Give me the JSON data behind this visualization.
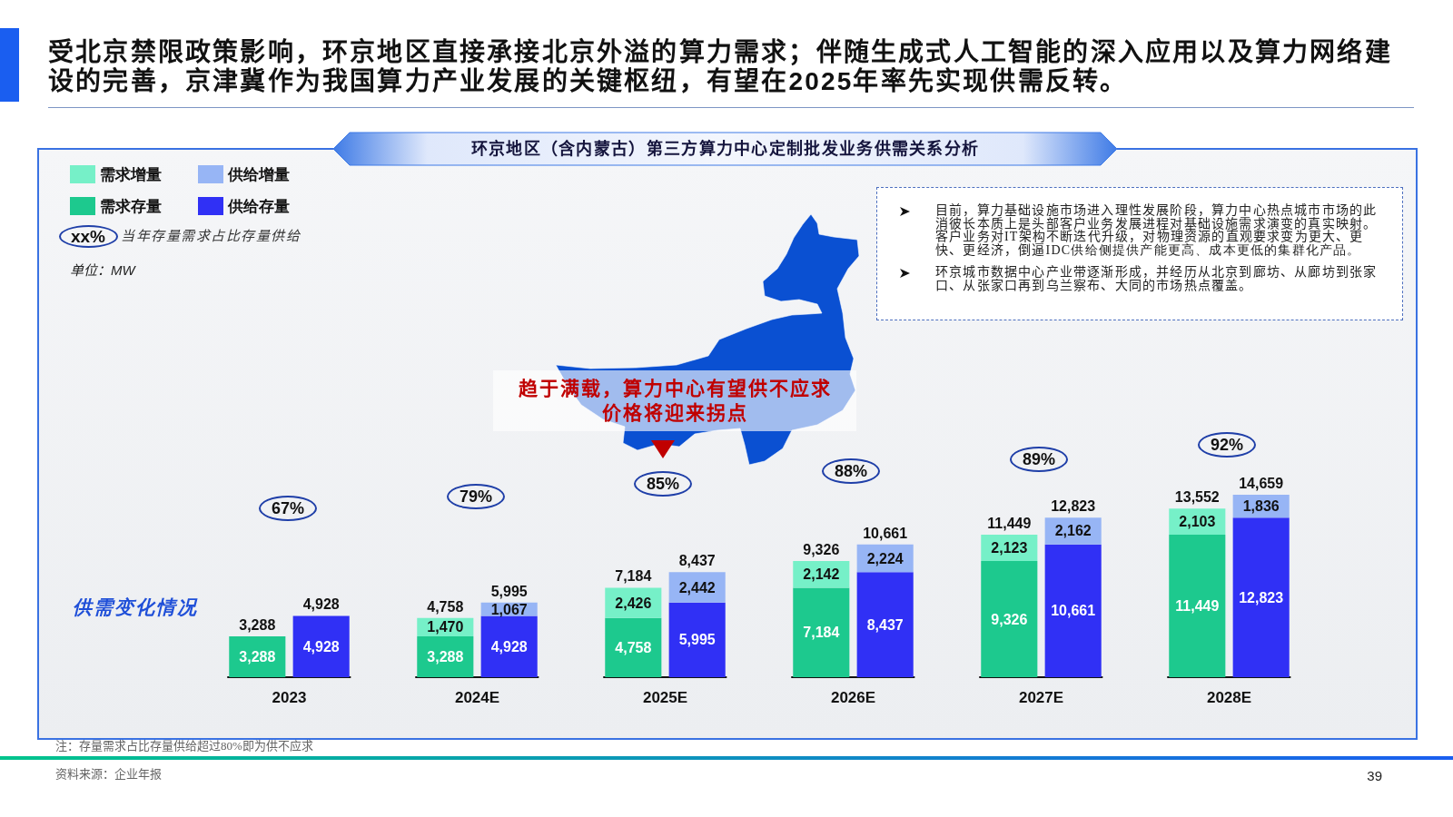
{
  "chart_data": {
    "type": "bar",
    "title": "受北京禁限政策影响，环京地区直接承接北京外溢的算力需求；伴随生成式人工智能的深入应用以及算力网络建设的完善，京津冀作为我国算力产业发展的关键枢纽，有望在2025年率先实现供需反转。",
    "subtitle": "环京地区（含内蒙古）第三方算力中心定制批发业务供需关系分析",
    "x": [
      2022.83,
      2023.17,
      2023.83,
      2024.17,
      2024.83,
      2025.17,
      2025.83,
      2026.17,
      2026.83,
      2027.17,
      2027.83,
      2028.17
    ],
    "xlim": [
      2022.5,
      2028.5
    ],
    "xticks": [
      {
        "value": 2023,
        "label": "2023"
      },
      {
        "value": 2024,
        "label": "2024E"
      },
      {
        "value": 2025,
        "label": "2025E"
      },
      {
        "value": 2026,
        "label": "2026E"
      },
      {
        "value": 2027,
        "label": "2027E"
      },
      {
        "value": 2028,
        "label": "2028E"
      }
    ],
    "stacked": true,
    "series": [
      {
        "name": "需求存量",
        "color": "#1dc98e",
        "values": [
          3288,
          null,
          3288,
          null,
          4758,
          null,
          7184,
          null,
          9326,
          null,
          11449,
          null
        ],
        "value_labels": [
          "3,288",
          null,
          "3,288",
          null,
          "4,758",
          null,
          "7,184",
          null,
          "9,326",
          null,
          "11,449",
          null
        ]
      },
      {
        "name": "需求增量",
        "color": "#76f0c8",
        "values": [
          null,
          null,
          1470,
          null,
          2426,
          null,
          2142,
          null,
          2123,
          null,
          2103,
          null
        ],
        "value_labels": [
          null,
          null,
          "1,470",
          null,
          "2,426",
          null,
          "2,142",
          null,
          "2,123",
          null,
          "2,103",
          null
        ]
      },
      {
        "name": "供给存量",
        "color": "#3030f5",
        "values": [
          null,
          4928,
          null,
          4928,
          null,
          5995,
          null,
          8437,
          null,
          10661,
          null,
          12823
        ],
        "value_labels": [
          null,
          "4,928",
          null,
          "4,928",
          null,
          "5,995",
          null,
          "8,437",
          null,
          "10,661",
          null,
          "12,823"
        ]
      },
      {
        "name": "供给增量",
        "color": "#97b5f5",
        "values": [
          null,
          null,
          null,
          1067,
          null,
          2442,
          null,
          2224,
          null,
          2162,
          null,
          1836
        ],
        "value_labels": [
          null,
          null,
          null,
          "1,067",
          null,
          "2,442",
          null,
          "2,224",
          null,
          "2,162",
          null,
          "1,836"
        ]
      }
    ],
    "totals": [
      "3,288",
      "4,928",
      "4,758",
      "5,995",
      "7,184",
      "8,437",
      "9,326",
      "10,661",
      "11,449",
      "12,823",
      "13,552",
      "14,659"
    ],
    "legend": "top left",
    "annotations": [
      "xx%",
      "当年存量需求占比存量供给",
      "单位：MW",
      "供需变化情况",
      "目前，算力基础设施市场进入理性发展阶段，算力中心热点城市市场的此消彼长本质上是头部客户业务发展进程对基础设施需求演变的真实映射。客户业务对IT架构不断迭代升级，对物理资源的直观要求变为更大、更快、更经济，倒逼IDC供给侧提供产能更高、成本更低的集群化产品。",
      "环京城市数据中心产业带逐渐形成，并经历从北京到廊坊、从廊坊到张家口、从张家口再到乌兰察布、大同的市场热点覆盖。",
      "趋于满载，算力中心有望供不应求",
      "价格将迎来拐点",
      "注：存量需求占比存量供给超过80%即为供不应求",
      "资料来源：企业年报",
      "39",
      "67%",
      "79%",
      "85%",
      "88%",
      "89%",
      "92%"
    ]
  }
}
